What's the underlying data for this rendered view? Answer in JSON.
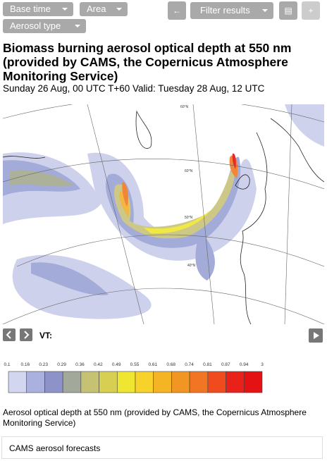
{
  "toolbar": {
    "base_time": "Base time",
    "area": "Area",
    "filter": "Filter results",
    "aerosol_type": "Aerosol type"
  },
  "header": {
    "title": "Biomass burning aerosol optical depth at 550 nm (provided by CAMS, the Copernicus Atmosphere Monitoring Service)",
    "subtitle": "Sunday 26 Aug, 00 UTC T+60 Valid: Tuesday 28 Aug, 12 UTC"
  },
  "map": {
    "labels": [
      "60°N",
      "50°N",
      "40°N"
    ]
  },
  "nav": {
    "vt": "VT:"
  },
  "legend": {
    "labels": [
      "0.1",
      "0.16",
      "0.23",
      "0.29",
      "0.36",
      "0.42",
      "0.49",
      "0.55",
      "0.61",
      "0.68",
      "0.74",
      "0.81",
      "0.87",
      "0.94",
      "3"
    ],
    "colors": [
      "#d2d6ee",
      "#aab1de",
      "#8d93c8",
      "#a2a99a",
      "#c6c274",
      "#d6cf52",
      "#eee631",
      "#f7d22a",
      "#f5b424",
      "#f29623",
      "#f27523",
      "#f04a1f",
      "#e8221a",
      "#e41212"
    ]
  },
  "caption": "Aerosol optical depth at 550 nm (provided by CAMS, the Copernicus Atmosphere Monitoring Service)",
  "footer": "CAMS aerosol forecasts"
}
